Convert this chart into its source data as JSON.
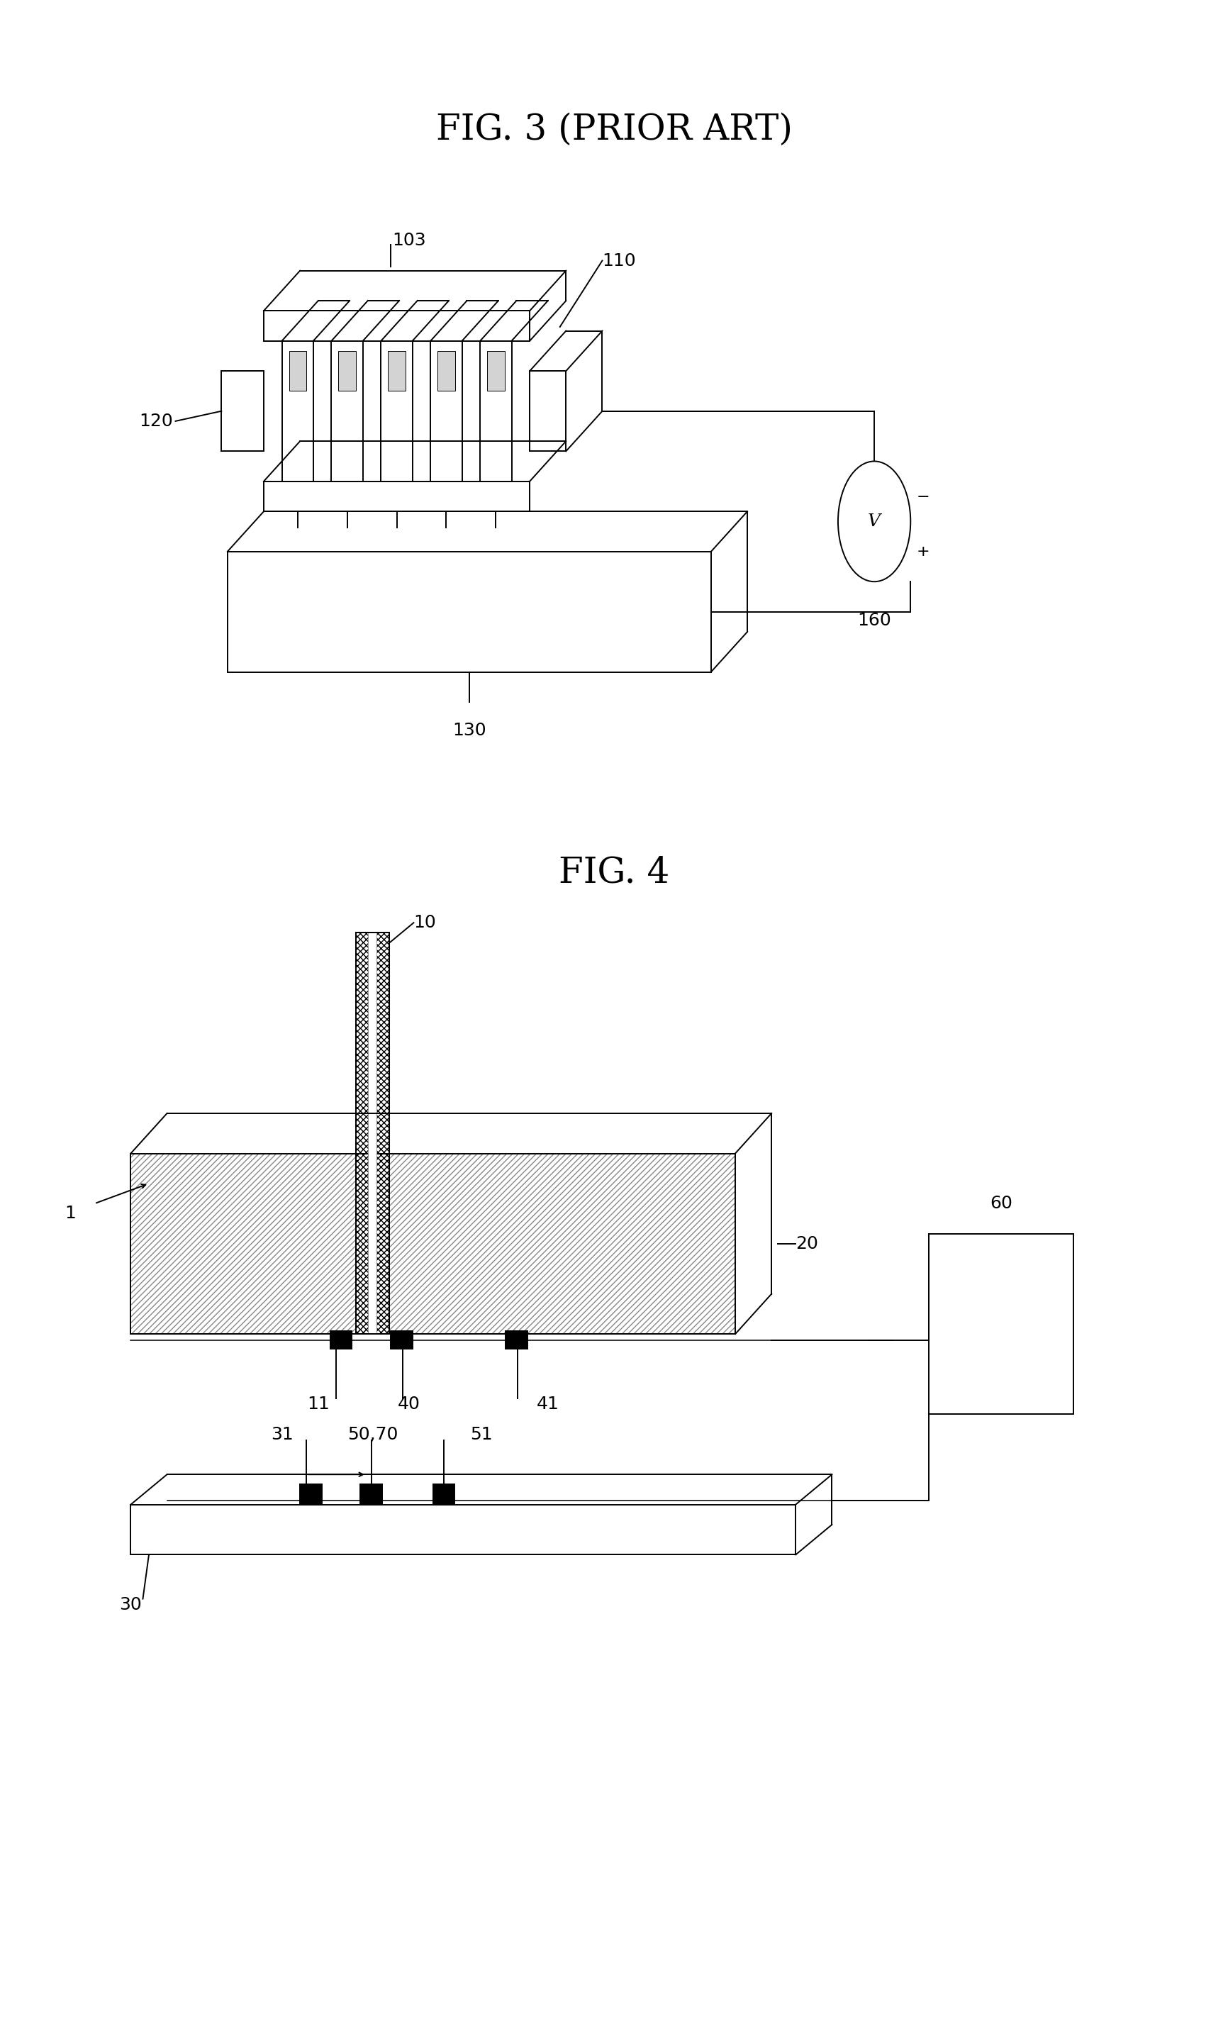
{
  "bg_color": "#ffffff",
  "fig_width": 17.33,
  "fig_height": 28.57,
  "fig3_title": "FIG. 3 (PRIOR ART)",
  "fig4_title": "FIG. 4",
  "label_fontsize": 18,
  "title_fontsize": 36
}
